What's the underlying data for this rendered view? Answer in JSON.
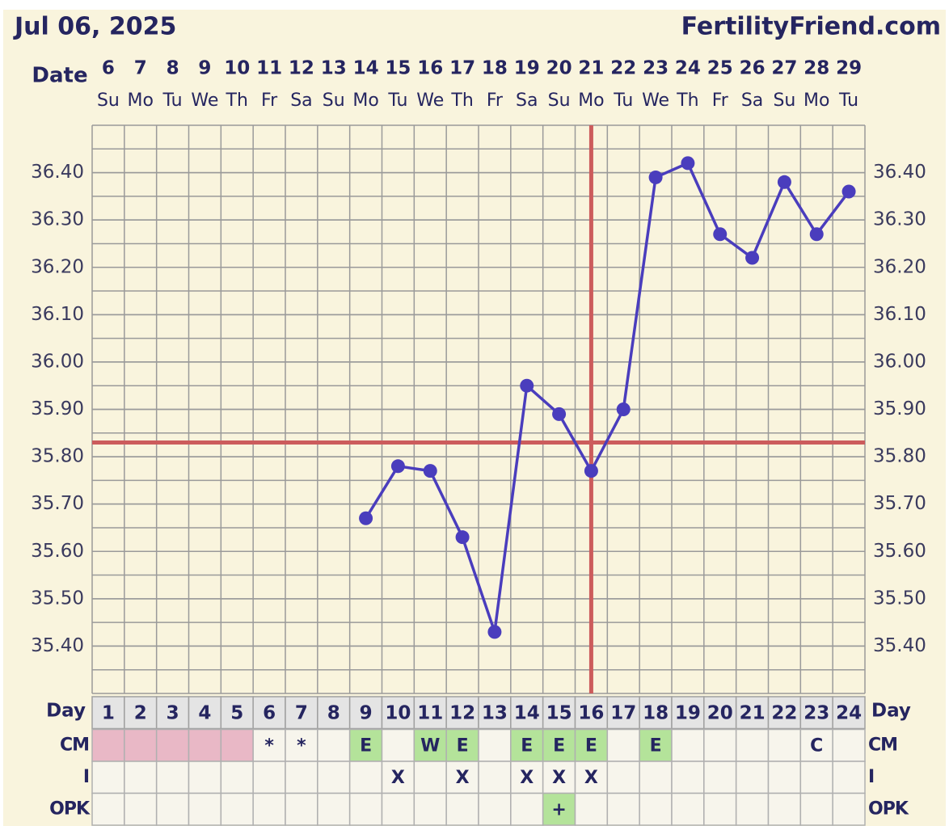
{
  "chart_data": {
    "type": "line",
    "title": "Jul 06, 2025",
    "site": "FertilityFriend.com",
    "date_label": "Date",
    "dates": [
      6,
      7,
      8,
      9,
      10,
      11,
      12,
      13,
      14,
      15,
      16,
      17,
      18,
      19,
      20,
      21,
      22,
      23,
      24,
      25,
      26,
      27,
      28,
      29
    ],
    "weekdays": [
      "Su",
      "Mo",
      "Tu",
      "We",
      "Th",
      "Fr",
      "Sa",
      "Su",
      "Mo",
      "Tu",
      "We",
      "Th",
      "Fr",
      "Sa",
      "Su",
      "Mo",
      "Tu",
      "We",
      "Th",
      "Fr",
      "Sa",
      "Su",
      "Mo",
      "Tu"
    ],
    "day_label": "Day",
    "categories": [
      1,
      2,
      3,
      4,
      5,
      6,
      7,
      8,
      9,
      10,
      11,
      12,
      13,
      14,
      15,
      16,
      17,
      18,
      19,
      20,
      21,
      22,
      23,
      24
    ],
    "series": [
      {
        "color": "#4a3dbd",
        "values": [
          null,
          null,
          null,
          null,
          null,
          null,
          null,
          null,
          35.67,
          35.78,
          35.77,
          35.63,
          35.43,
          35.95,
          35.89,
          35.77,
          35.9,
          36.39,
          36.42,
          36.27,
          36.22,
          36.38,
          36.27,
          36.36
        ]
      }
    ],
    "ylim": [
      35.3,
      36.5
    ],
    "yticks": [
      {
        "value": 35.4,
        "label": "35.40"
      },
      {
        "value": 35.5,
        "label": "35.50"
      },
      {
        "value": 35.6,
        "label": "35.60"
      },
      {
        "value": 35.7,
        "label": "35.70"
      },
      {
        "value": 35.8,
        "label": "35.80"
      },
      {
        "value": 35.9,
        "label": "35.90"
      },
      {
        "value": 36.0,
        "label": "36.00"
      },
      {
        "value": 36.1,
        "label": "36.10"
      },
      {
        "value": 36.2,
        "label": "36.20"
      },
      {
        "value": 36.3,
        "label": "36.30"
      },
      {
        "value": 36.4,
        "label": "36.40"
      }
    ],
    "grid": true,
    "coverline": 35.83,
    "ovulation_day": 16,
    "marker_color": "#cc5c5c",
    "period": [
      true,
      true,
      true,
      true,
      true,
      false,
      false,
      false,
      false,
      false,
      false,
      false,
      false,
      false,
      false,
      false,
      false,
      false,
      false,
      false,
      false,
      false,
      false,
      false
    ],
    "period_color": "#e9b8c6",
    "highlight_color": "#b4e39a",
    "rows": [
      {
        "label": "CM",
        "values": [
          null,
          null,
          null,
          null,
          null,
          "*",
          "*",
          null,
          "E",
          null,
          "W",
          "E",
          null,
          "E",
          "E",
          "E",
          null,
          "E",
          null,
          null,
          null,
          null,
          "C",
          null
        ],
        "highlight": [
          false,
          false,
          false,
          false,
          false,
          false,
          false,
          false,
          true,
          false,
          true,
          true,
          false,
          true,
          true,
          true,
          false,
          true,
          false,
          false,
          false,
          false,
          false,
          false
        ]
      },
      {
        "label": "I",
        "values": [
          null,
          null,
          null,
          null,
          null,
          null,
          null,
          null,
          null,
          "X",
          null,
          "X",
          null,
          "X",
          "X",
          "X",
          null,
          null,
          null,
          null,
          null,
          null,
          null,
          null
        ],
        "highlight": [
          false,
          false,
          false,
          false,
          false,
          false,
          false,
          false,
          false,
          false,
          false,
          false,
          false,
          false,
          false,
          false,
          false,
          false,
          false,
          false,
          false,
          false,
          false,
          false
        ]
      },
      {
        "label": "OPK",
        "values": [
          null,
          null,
          null,
          null,
          null,
          null,
          null,
          null,
          null,
          null,
          null,
          null,
          null,
          null,
          "+",
          null,
          null,
          null,
          null,
          null,
          null,
          null,
          null,
          null
        ],
        "highlight": [
          false,
          false,
          false,
          false,
          false,
          false,
          false,
          false,
          false,
          false,
          false,
          false,
          false,
          false,
          true,
          false,
          false,
          false,
          false,
          false,
          false,
          false,
          false,
          false
        ]
      }
    ]
  }
}
